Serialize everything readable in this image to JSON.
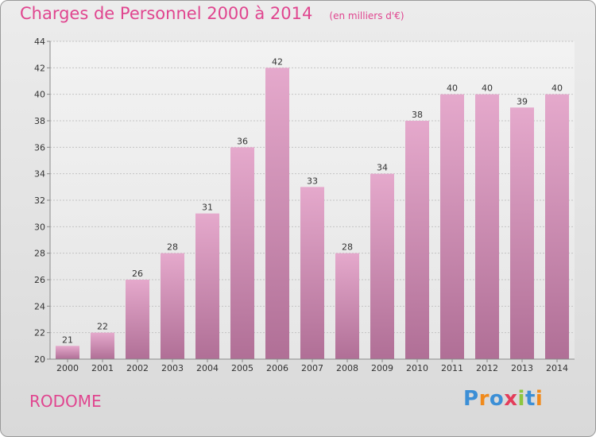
{
  "header": {
    "title": "Charges de Personnel 2000 à 2014",
    "subtitle": "(en milliers d'€)"
  },
  "footer": {
    "commune": "RODOME",
    "logo": [
      "P",
      "r",
      "o",
      "x",
      "i",
      "t",
      "i"
    ]
  },
  "colors": {
    "accent": "#e0458f",
    "bar_top": "#e5a9cc",
    "bar_bottom": "#b06f96",
    "logo_letters": [
      "#3c8fd6",
      "#f08a1c",
      "#3c8fd6",
      "#e33d5a",
      "#8cc63f",
      "#3c8fd6",
      "#f08a1c"
    ]
  },
  "chart_data": {
    "type": "bar",
    "categories": [
      "2000",
      "2001",
      "2002",
      "2003",
      "2004",
      "2005",
      "2006",
      "2007",
      "2008",
      "2009",
      "2010",
      "2011",
      "2012",
      "2013",
      "2014"
    ],
    "values": [
      21,
      22,
      26,
      28,
      31,
      36,
      42,
      33,
      28,
      34,
      38,
      40,
      40,
      39,
      40
    ],
    "title": "Charges de Personnel 2000 à 2014",
    "xlabel": "",
    "ylabel": "",
    "ylim": [
      20,
      44
    ],
    "yticks": [
      20,
      22,
      24,
      26,
      28,
      30,
      32,
      34,
      36,
      38,
      40,
      42,
      44
    ],
    "grid": true,
    "data_labels": true
  }
}
